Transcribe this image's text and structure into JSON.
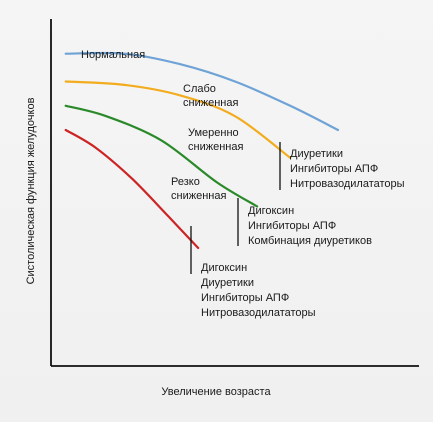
{
  "chart_data": {
    "type": "line",
    "title": "",
    "xlabel": "Увеличение возраста",
    "ylabel": "Систолическая функция желудочков",
    "series": [
      {
        "key": "normal",
        "color": "#6fa3d6",
        "label_lines": [
          "Нормальная"
        ],
        "points": [
          [
            0.04,
            0.9
          ],
          [
            0.2,
            0.9
          ],
          [
            0.35,
            0.87
          ],
          [
            0.5,
            0.82
          ],
          [
            0.65,
            0.75
          ],
          [
            0.78,
            0.68
          ]
        ]
      },
      {
        "key": "mild",
        "color": "#f2ac1e",
        "label_lines": [
          "Слабо",
          "сниженная"
        ],
        "points": [
          [
            0.04,
            0.82
          ],
          [
            0.2,
            0.81
          ],
          [
            0.35,
            0.78
          ],
          [
            0.5,
            0.72
          ],
          [
            0.65,
            0.6
          ]
        ]
      },
      {
        "key": "moderate",
        "color": "#2a8a2a",
        "label_lines": [
          "Умеренно",
          "сниженная"
        ],
        "points": [
          [
            0.04,
            0.75
          ],
          [
            0.15,
            0.72
          ],
          [
            0.3,
            0.65
          ],
          [
            0.45,
            0.53
          ],
          [
            0.56,
            0.46
          ]
        ]
      },
      {
        "key": "severe",
        "color": "#cc2424",
        "label_lines": [
          "Резко",
          "сниженная"
        ],
        "points": [
          [
            0.04,
            0.68
          ],
          [
            0.12,
            0.63
          ],
          [
            0.22,
            0.54
          ],
          [
            0.32,
            0.43
          ],
          [
            0.4,
            0.34
          ]
        ]
      }
    ],
    "annotations": [
      {
        "key": "mild-therapy",
        "lines": [
          "Диуретики",
          "Ингибиторы АПФ",
          "Нитровазодилататоры"
        ]
      },
      {
        "key": "moderate-therapy",
        "lines": [
          "Дигоксин",
          "Ингибиторы АПФ",
          "Комбинация диуретиков"
        ]
      },
      {
        "key": "severe-therapy",
        "lines": [
          "Дигоксин",
          "Диуретики",
          "Ингибиторы АПФ",
          "Нитровазодилататоры"
        ]
      }
    ],
    "xlim": [
      0,
      1
    ],
    "ylim": [
      0,
      1
    ],
    "grid": false,
    "legend": "none"
  }
}
